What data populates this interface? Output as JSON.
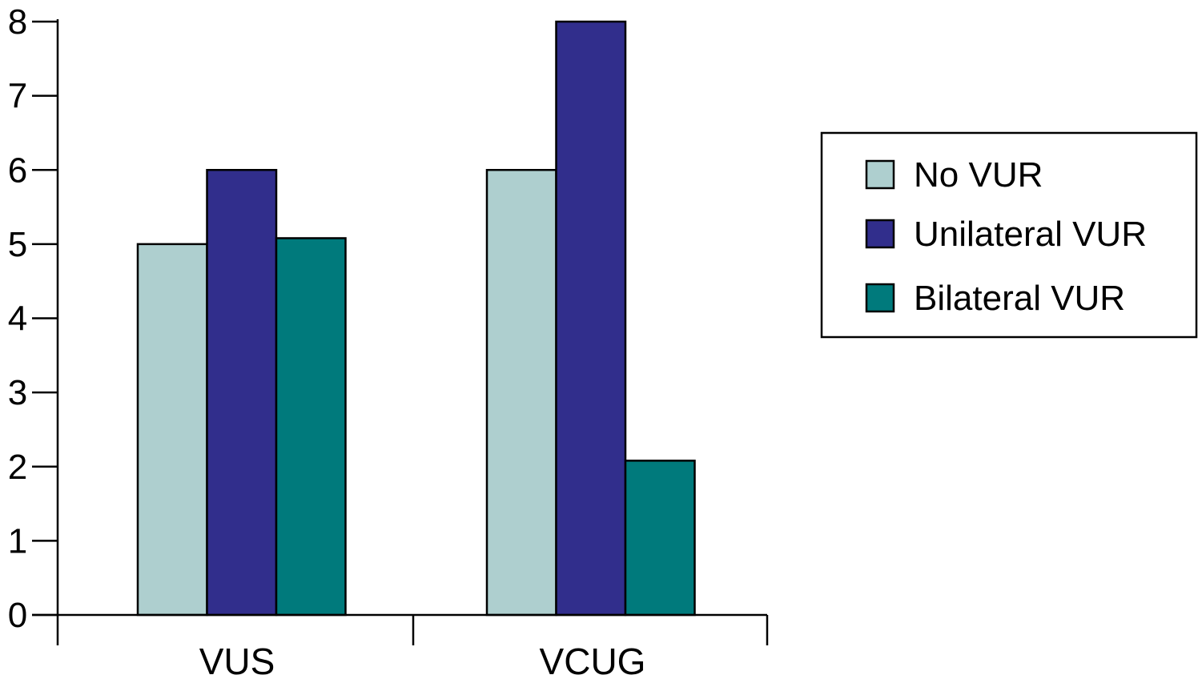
{
  "chart_data": {
    "type": "bar",
    "title": "",
    "xlabel": "",
    "ylabel": "",
    "categories": [
      "VUS",
      "VCUG"
    ],
    "series": [
      {
        "name": "No VUR",
        "color": "#aecfcf",
        "values": [
          5,
          6
        ]
      },
      {
        "name": "Unilateral VUR",
        "color": "#312e8c",
        "values": [
          6,
          8
        ]
      },
      {
        "name": "Bilateral VUR",
        "color": "#007a7c",
        "values": [
          5.08,
          2.08
        ]
      }
    ],
    "ylim": [
      0,
      8
    ],
    "yticks": [
      "0",
      "1",
      "2",
      "3",
      "4",
      "5",
      "6",
      "7",
      "8"
    ],
    "grid": false,
    "legend_position": "right"
  }
}
